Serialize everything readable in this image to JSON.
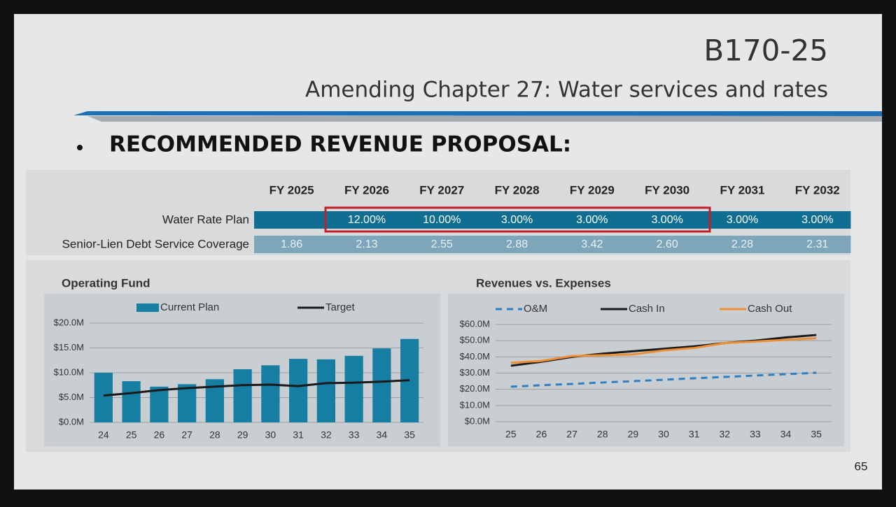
{
  "header": {
    "code": "B170-25",
    "subtitle": "Amending Chapter 27: Water services and rates"
  },
  "heading": "RECOMMENDED REVENUE PROPOSAL:",
  "table": {
    "columns": [
      "FY 2025",
      "FY 2026",
      "FY 2027",
      "FY 2028",
      "FY 2029",
      "FY 2030",
      "FY 2031",
      "FY 2032"
    ],
    "rows": [
      {
        "label": "Water Rate Plan",
        "values": [
          null,
          "12.00%",
          "10.00%",
          "3.00%",
          "3.00%",
          "3.00%",
          "3.00%",
          "3.00%"
        ]
      },
      {
        "label": "Senior-Lien Debt Service Coverage",
        "values": [
          "1.86",
          "2.13",
          "2.55",
          "2.88",
          "3.42",
          "2.60",
          "2.28",
          "2.31"
        ]
      }
    ]
  },
  "chart_data": [
    {
      "type": "bar",
      "title": "Operating Fund",
      "categories": [
        "24",
        "25",
        "26",
        "27",
        "28",
        "29",
        "30",
        "31",
        "32",
        "33",
        "34",
        "35"
      ],
      "series": [
        {
          "name": "Current Plan",
          "color": "#167ea3",
          "values": [
            10.0,
            8.3,
            7.2,
            7.7,
            8.7,
            10.7,
            11.5,
            12.8,
            12.7,
            13.4,
            14.9,
            16.8
          ]
        },
        {
          "name": "Target",
          "color": "#1a1a1a",
          "type": "line",
          "values": [
            5.4,
            5.9,
            6.5,
            6.9,
            7.2,
            7.5,
            7.6,
            7.3,
            7.9,
            8.0,
            8.2,
            8.5
          ]
        }
      ],
      "ylim": [
        0,
        20
      ],
      "yticks": [
        {
          "value": 0,
          "label": "$0.0M"
        },
        {
          "value": 5,
          "label": "$5.0M"
        },
        {
          "value": 10,
          "label": "$10.0M"
        },
        {
          "value": 15,
          "label": "$15.0M"
        },
        {
          "value": 20,
          "label": "$20.0M"
        }
      ],
      "grid": true
    },
    {
      "type": "line",
      "title": "Revenues vs. Expenses",
      "categories": [
        "25",
        "26",
        "27",
        "28",
        "29",
        "30",
        "31",
        "32",
        "33",
        "34",
        "35"
      ],
      "series": [
        {
          "name": "O&M",
          "color": "#2f7fc1",
          "dashed": true,
          "values": [
            21.6,
            22.5,
            23.3,
            24.2,
            25.0,
            25.9,
            26.8,
            27.6,
            28.5,
            29.3,
            30.2
          ]
        },
        {
          "name": "Cash In",
          "color": "#1a1a1a",
          "values": [
            34.5,
            37.0,
            40.0,
            42.0,
            43.5,
            45.0,
            46.5,
            48.5,
            50.0,
            52.0,
            53.5
          ]
        },
        {
          "name": "Cash Out",
          "color": "#ef8f35",
          "values": [
            36.3,
            37.5,
            40.5,
            41.0,
            41.5,
            44.0,
            45.5,
            48.5,
            49.5,
            50.5,
            51.5
          ]
        }
      ],
      "ylim": [
        0,
        60
      ],
      "yticks": [
        {
          "value": 0,
          "label": "$0.0M"
        },
        {
          "value": 10,
          "label": "$10.0M"
        },
        {
          "value": 20,
          "label": "$20.0M"
        },
        {
          "value": 30,
          "label": "$30.0M"
        },
        {
          "value": 40,
          "label": "$40.0M"
        },
        {
          "value": 50,
          "label": "$50.0M"
        },
        {
          "value": 60,
          "label": "$60.0M"
        }
      ],
      "grid": true
    }
  ],
  "page_number": "65"
}
